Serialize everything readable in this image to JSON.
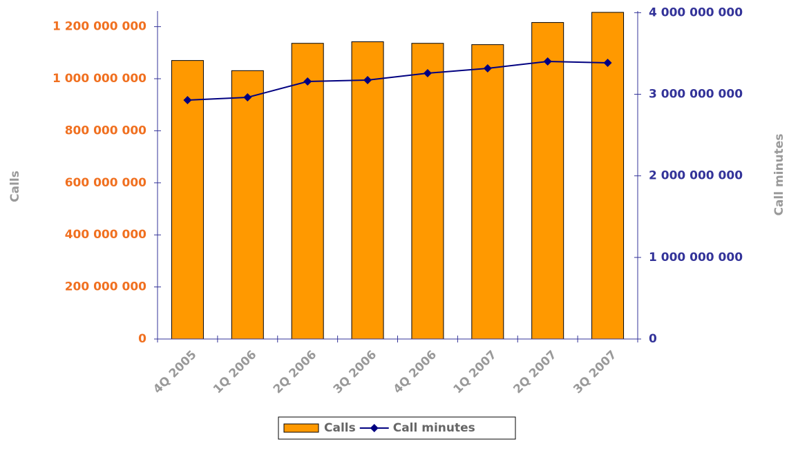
{
  "chart_data": {
    "type": "bar-line",
    "categories": [
      "4Q 2005",
      "1Q 2006",
      "2Q 2006",
      "3Q 2006",
      "4Q 2006",
      "1Q 2007",
      "2Q 2007",
      "3Q 2007"
    ],
    "series": [
      {
        "name": "Calls",
        "color": "#ff9900",
        "type": "bar",
        "axis": "y",
        "values": [
          1070000000,
          1031000000,
          1136000000,
          1142000000,
          1136000000,
          1131000000,
          1216000000,
          1255000000
        ]
      },
      {
        "name": "Call minutes",
        "color": "#000080",
        "type": "line",
        "axis": "y2",
        "values": [
          2928000000,
          2962000000,
          3157000000,
          3174000000,
          3258000000,
          3318000000,
          3402000000,
          3385000000
        ]
      }
    ],
    "ylabel": "Calls",
    "y2label": "Call minutes",
    "ylim": [
      0,
      1260000000
    ],
    "yticks": [
      0,
      {
        "value": 200000000,
        "label": "200 000 000"
      },
      {
        "value": 400000000,
        "label": "400 000 000"
      },
      {
        "value": 600000000,
        "label": "600 000 000"
      },
      {
        "value": 800000000,
        "label": "800 000 000"
      },
      {
        "value": 1000000000,
        "label": "1 000 000 000"
      },
      {
        "value": 1200000000,
        "label": "1 200 000 000"
      }
    ],
    "y2lim": [
      0,
      4020000000
    ],
    "y2ticks": [
      0,
      {
        "value": 1000000000,
        "label": "1 000 000 000"
      },
      {
        "value": 2000000000,
        "label": "2 000 000 000"
      },
      {
        "value": 3000000000,
        "label": "3 000 000 000"
      },
      {
        "value": 4000000000,
        "label": "4 000 000 000"
      }
    ],
    "ytick_color": "#f07020",
    "y2tick_color": "#333399",
    "legend": "bottom"
  }
}
